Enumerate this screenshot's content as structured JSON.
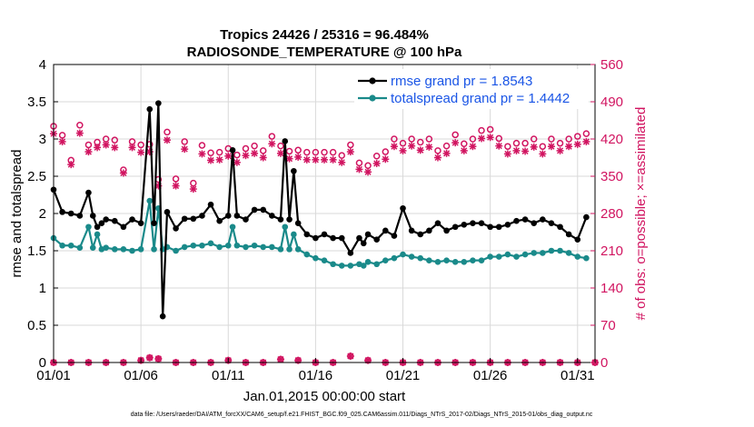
{
  "colors": {
    "rmse": "#000000",
    "spread": "#1a8a8a",
    "obs": "#d11460",
    "legend_text": "#1a55e6"
  },
  "footer": "data file: /Users/raeder/DAI/ATM_forcXX/CAM6_setup/f.e21.FHIST_BGC.f09_025.CAM6assim.011/Diags_NTrS_2017-02/Diags_NTrS_2015-01/obs_diag_output.nc",
  "chart_data": {
    "type": "line",
    "title": "Tropics 24426 / 25316 = 96.484%",
    "subtitle": "RADIOSONDE_TEMPERATURE @ 100 hPa",
    "xlabel": "Jan.01,2015 00:00:00 start",
    "ylabel": "rmse and totalspread",
    "y2label": "# of obs: o=possible; ×=assimilated",
    "xlim": [
      0,
      31
    ],
    "ylim": [
      0,
      4
    ],
    "y2lim": [
      0,
      560
    ],
    "x_ticks": [
      0,
      5,
      10,
      15,
      20,
      25,
      30
    ],
    "x_tick_labels": [
      "01/01",
      "01/06",
      "01/11",
      "01/16",
      "01/21",
      "01/26",
      "01/31"
    ],
    "y_ticks": [
      0,
      0.5,
      1,
      1.5,
      2,
      2.5,
      3,
      3.5,
      4
    ],
    "y_tick_labels": [
      "0",
      "0.5",
      "1",
      "1.5",
      "2",
      "2.5",
      "3",
      "3.5",
      "4"
    ],
    "y2_ticks": [
      0,
      70,
      140,
      210,
      280,
      350,
      420,
      490,
      560
    ],
    "y2_tick_labels": [
      "0",
      "70",
      "140",
      "210",
      "280",
      "350",
      "420",
      "490",
      "560"
    ],
    "legend": [
      "rmse grand pr = 1.8543",
      "totalspread grand pr = 1.4442"
    ],
    "x": [
      0.0,
      0.5,
      1.0,
      1.5,
      2.0,
      2.25,
      2.5,
      2.75,
      3.0,
      3.5,
      4.0,
      4.5,
      5.0,
      5.5,
      5.75,
      6.0,
      6.25,
      6.5,
      7.0,
      7.5,
      8.0,
      8.5,
      9.0,
      9.5,
      10.0,
      10.25,
      10.5,
      11.0,
      11.5,
      12.0,
      12.5,
      13.0,
      13.25,
      13.5,
      13.75,
      14.0,
      14.5,
      15.0,
      15.5,
      16.0,
      16.5,
      17.0,
      17.5,
      17.75,
      18.0,
      18.5,
      19.0,
      19.5,
      20.0,
      20.5,
      21.0,
      21.5,
      22.0,
      22.5,
      23.0,
      23.5,
      24.0,
      24.5,
      25.0,
      25.5,
      26.0,
      26.5,
      27.0,
      27.5,
      28.0,
      28.5,
      29.0,
      29.5,
      30.0,
      30.5
    ],
    "series": [
      {
        "name": "rmse",
        "values": [
          2.32,
          2.02,
          2.0,
          1.97,
          2.28,
          1.97,
          1.82,
          1.87,
          1.92,
          1.9,
          1.82,
          1.92,
          1.87,
          3.4,
          1.87,
          3.48,
          0.62,
          2.02,
          1.8,
          1.93,
          1.93,
          1.97,
          2.12,
          1.9,
          1.97,
          2.85,
          1.97,
          1.92,
          2.05,
          2.05,
          1.97,
          1.92,
          2.97,
          1.92,
          2.57,
          1.87,
          1.72,
          1.67,
          1.72,
          1.67,
          1.67,
          1.47,
          1.67,
          1.6,
          1.72,
          1.65,
          1.77,
          1.7,
          2.07,
          1.77,
          1.72,
          1.77,
          1.87,
          1.77,
          1.82,
          1.85,
          1.87,
          1.87,
          1.82,
          1.82,
          1.85,
          1.9,
          1.92,
          1.87,
          1.92,
          1.87,
          1.82,
          1.72,
          1.65,
          1.95
        ]
      },
      {
        "name": "totalspread",
        "values": [
          1.67,
          1.57,
          1.57,
          1.54,
          1.82,
          1.54,
          1.72,
          1.52,
          1.54,
          1.52,
          1.52,
          1.5,
          1.52,
          2.17,
          1.52,
          2.07,
          1.52,
          1.55,
          1.5,
          1.55,
          1.57,
          1.57,
          1.6,
          1.55,
          1.57,
          1.82,
          1.57,
          1.55,
          1.57,
          1.55,
          1.55,
          1.52,
          1.82,
          1.52,
          1.72,
          1.52,
          1.45,
          1.4,
          1.37,
          1.32,
          1.3,
          1.3,
          1.32,
          1.3,
          1.35,
          1.32,
          1.37,
          1.4,
          1.45,
          1.42,
          1.4,
          1.37,
          1.35,
          1.37,
          1.35,
          1.35,
          1.37,
          1.37,
          1.42,
          1.42,
          1.45,
          1.42,
          1.45,
          1.47,
          1.47,
          1.5,
          1.5,
          1.47,
          1.42,
          1.4
        ]
      }
    ],
    "obs_x": [
      0,
      0.5,
      1,
      1.5,
      2,
      2.5,
      3,
      3.5,
      4,
      4.5,
      5,
      5.5,
      6,
      6.5,
      7,
      7.5,
      8,
      8.5,
      9,
      9.5,
      10,
      10.5,
      11,
      11.5,
      12,
      12.5,
      13,
      13.5,
      14,
      14.5,
      15,
      15.5,
      16,
      16.5,
      17,
      17.5,
      18,
      18.5,
      19,
      19.5,
      20,
      20.5,
      21,
      21.5,
      22,
      22.5,
      23,
      23.5,
      24,
      24.5,
      25,
      25.5,
      26,
      26.5,
      27,
      27.5,
      28,
      28.5,
      29,
      29.5,
      30,
      30.5
    ],
    "obs_possible": [
      444,
      427,
      380,
      446,
      409,
      414,
      420,
      418,
      362,
      415,
      409,
      410,
      344,
      433,
      345,
      415,
      337,
      408,
      394,
      395,
      402,
      390,
      402,
      407,
      398,
      425,
      407,
      397,
      399,
      395,
      395,
      395,
      395,
      389,
      409,
      375,
      370,
      388,
      396,
      420,
      412,
      420,
      414,
      420,
      398,
      407,
      428,
      411,
      420,
      436,
      438,
      421,
      406,
      412,
      412,
      420,
      406,
      420,
      412,
      420,
      425,
      430
    ],
    "obs_assimilated": [
      430,
      415,
      372,
      431,
      396,
      404,
      409,
      404,
      356,
      404,
      395,
      396,
      332,
      418,
      332,
      401,
      326,
      392,
      380,
      381,
      388,
      376,
      389,
      393,
      385,
      411,
      393,
      383,
      386,
      381,
      381,
      381,
      381,
      376,
      396,
      363,
      358,
      374,
      382,
      406,
      398,
      407,
      399,
      405,
      385,
      393,
      413,
      398,
      406,
      421,
      423,
      407,
      392,
      398,
      397,
      405,
      392,
      406,
      398,
      406,
      410,
      415
    ],
    "unassimilated_markers_x": [
      0,
      1,
      2,
      3,
      4,
      5,
      5.5,
      6,
      7,
      8,
      9,
      10,
      11,
      12,
      13,
      14,
      15,
      16,
      17,
      18,
      19,
      20,
      21,
      22,
      23,
      24,
      25,
      26,
      27,
      28,
      29,
      30,
      31
    ],
    "unassimilated_markers_y": [
      0,
      0,
      0,
      0,
      0,
      4,
      9,
      7,
      0,
      0,
      0,
      4,
      0,
      0,
      6,
      4,
      0,
      0,
      12,
      4,
      0,
      0,
      0,
      0,
      0,
      0,
      0,
      0,
      0,
      0,
      0,
      0,
      0
    ]
  }
}
